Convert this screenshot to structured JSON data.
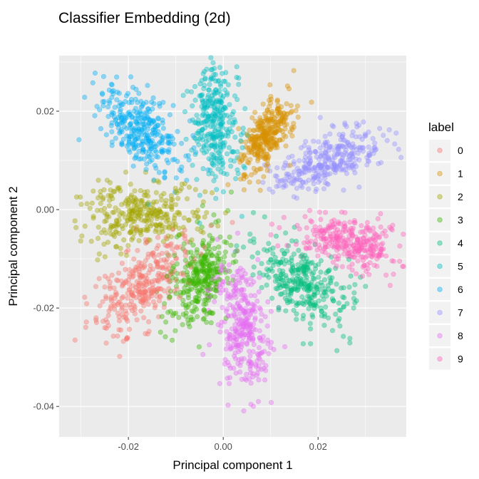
{
  "chart_data": {
    "type": "scatter",
    "title": "Classifier Embedding (2d)",
    "xlabel": "Principal component 1",
    "ylabel": "Principal component 2",
    "xlim": [
      -0.0346,
      0.0386
    ],
    "ylim": [
      -0.0462,
      0.0313
    ],
    "xticks": [
      {
        "v": -0.02,
        "label": "-0.02"
      },
      {
        "v": 0,
        "label": "0.00"
      },
      {
        "v": 0.02,
        "label": "0.02"
      }
    ],
    "yticks": [
      {
        "v": -0.04,
        "label": "-0.04"
      },
      {
        "v": -0.02,
        "label": "-0.02"
      },
      {
        "v": 0,
        "label": "0.00"
      },
      {
        "v": 0.02,
        "label": "0.02"
      }
    ],
    "grid": true,
    "legend": {
      "title": "label",
      "placement": "right"
    },
    "alpha": 0.4,
    "series": [
      {
        "name": "0",
        "color": "#F8766D",
        "center": [
          -0.017,
          -0.0154
        ],
        "radial_sd": 0.0065,
        "perp_sd": 0.0028,
        "n": 320
      },
      {
        "name": "1",
        "color": "#D89000",
        "center": [
          0.0093,
          0.015
        ],
        "radial_sd": 0.0045,
        "perp_sd": 0.0018,
        "n": 320
      },
      {
        "name": "2",
        "color": "#A3A500",
        "center": [
          -0.017,
          -0.001
        ],
        "radial_sd": 0.006,
        "perp_sd": 0.003,
        "n": 320
      },
      {
        "name": "3",
        "color": "#39B600",
        "center": [
          -0.005,
          -0.014
        ],
        "radial_sd": 0.005,
        "perp_sd": 0.0025,
        "n": 320
      },
      {
        "name": "4",
        "color": "#00BF7D",
        "center": [
          0.016,
          -0.0146
        ],
        "radial_sd": 0.0055,
        "perp_sd": 0.003,
        "n": 320
      },
      {
        "name": "5",
        "color": "#00BFC4",
        "center": [
          -0.002,
          0.018
        ],
        "radial_sd": 0.006,
        "perp_sd": 0.0025,
        "n": 320
      },
      {
        "name": "6",
        "color": "#00B0F6",
        "center": [
          -0.017,
          0.0158
        ],
        "radial_sd": 0.0055,
        "perp_sd": 0.0028,
        "n": 320
      },
      {
        "name": "7",
        "color": "#9590FF",
        "center": [
          0.022,
          0.01
        ],
        "radial_sd": 0.006,
        "perp_sd": 0.0022,
        "n": 320
      },
      {
        "name": "8",
        "color": "#E76BF3",
        "center": [
          0.004,
          -0.024
        ],
        "radial_sd": 0.0065,
        "perp_sd": 0.0025,
        "n": 320
      },
      {
        "name": "9",
        "color": "#FF62BC",
        "center": [
          0.0266,
          -0.0067
        ],
        "radial_sd": 0.006,
        "perp_sd": 0.0022,
        "n": 320
      }
    ]
  }
}
